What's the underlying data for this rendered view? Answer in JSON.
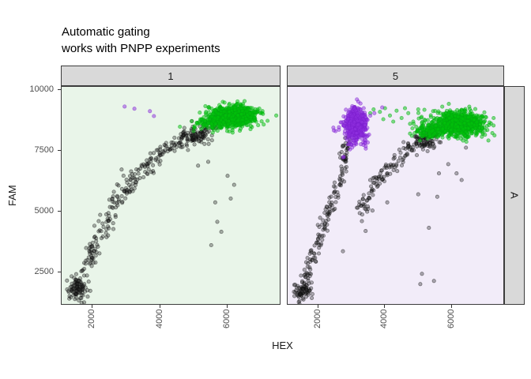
{
  "title": {
    "line1": "Automatic gating",
    "line2": "works with PNPP experiments"
  },
  "chart_data": {
    "type": "scatter",
    "title": "Automatic gating\nworks with PNPP experiments",
    "xlabel": "HEX",
    "ylabel": "FAM",
    "xlim": [
      1080,
      7600
    ],
    "ylim": [
      1136,
      10130
    ],
    "x_ticks": [
      2000,
      4000,
      6000
    ],
    "y_ticks": [
      10000,
      7500,
      5000,
      2500
    ],
    "grid": false,
    "legend": false,
    "facet_row_label": "A",
    "point_style": {
      "radius": 2.2,
      "stroke_width": 0.7,
      "classes": {
        "negative": {
          "fill": "#1c1c1c",
          "fill_opacity": 0.34,
          "stroke": "#0a0a0a",
          "stroke_opacity": 0.5
        },
        "positive": {
          "fill": "#00C30A",
          "fill_opacity": 0.5,
          "stroke": "#00A511",
          "stroke_opacity": 0.55
        },
        "other": {
          "fill": "#9030E0",
          "fill_opacity": 0.5,
          "stroke": "#7A1ECC",
          "stroke_opacity": 0.55
        }
      }
    },
    "panels": [
      {
        "facet_label": "1",
        "background": "#E9F5E9",
        "seed": 11,
        "groups": [
          {
            "name": "negative-rain-curve",
            "class": "negative",
            "kind": "curve",
            "n": 300,
            "jitter": [
              110,
              180
            ],
            "path": [
              [
                1400,
                1700
              ],
              [
                1700,
                2400
              ],
              [
                2000,
                3300
              ],
              [
                2300,
                4300
              ],
              [
                2600,
                5100
              ],
              [
                2900,
                5800
              ],
              [
                3200,
                6300
              ],
              [
                3500,
                6750
              ],
              [
                3800,
                7100
              ],
              [
                4100,
                7450
              ],
              [
                4400,
                7750
              ],
              [
                4700,
                7980
              ],
              [
                5000,
                8180
              ],
              [
                5300,
                8360
              ],
              [
                5600,
                8500
              ]
            ]
          },
          {
            "name": "negative-start-blob",
            "class": "negative",
            "kind": "cluster",
            "n": 70,
            "center": [
              1550,
              1850
            ],
            "sd": [
              150,
              230
            ]
          },
          {
            "name": "negative-under-positive",
            "class": "negative",
            "kind": "cluster",
            "n": 45,
            "center": [
              5050,
              8120
            ],
            "sd": [
              260,
              190
            ]
          },
          {
            "name": "negative-outliers",
            "class": "negative",
            "kind": "points",
            "pts": [
              [
                5430,
                7050
              ],
              [
                6005,
                6470
              ],
              [
                6100,
                5540
              ],
              [
                5640,
                5380
              ],
              [
                5700,
                4580
              ],
              [
                5820,
                4170
              ],
              [
                5520,
                3620
              ],
              [
                5130,
                6890
              ],
              [
                3740,
                6630
              ],
              [
                2860,
                6730
              ],
              [
                6200,
                6100
              ]
            ]
          },
          {
            "name": "positive-main",
            "class": "positive",
            "kind": "cluster",
            "n": 850,
            "center": [
              6200,
              8950
            ],
            "sd": [
              310,
              200
            ]
          },
          {
            "name": "positive-tail",
            "class": "positive",
            "kind": "cluster",
            "n": 130,
            "center": [
              5580,
              8680
            ],
            "sd": [
              260,
              170
            ]
          },
          {
            "name": "positive-halo",
            "class": "positive",
            "kind": "cluster",
            "n": 50,
            "center": [
              6200,
              8950
            ],
            "sd": [
              520,
              300
            ]
          },
          {
            "name": "positive-singles",
            "class": "positive",
            "kind": "points",
            "pts": [
              [
                4590,
                8490
              ],
              [
                4940,
                8720
              ],
              [
                5100,
                8650
              ]
            ]
          },
          {
            "name": "other-strays",
            "class": "other",
            "kind": "points",
            "pts": [
              [
                2950,
                9320
              ],
              [
                3240,
                9230
              ],
              [
                3700,
                9130
              ],
              [
                3820,
                8930
              ]
            ]
          }
        ]
      },
      {
        "facet_label": "5",
        "background": "#F2ECF9",
        "seed": 23,
        "groups": [
          {
            "name": "negative-rain-left",
            "class": "negative",
            "kind": "curve",
            "n": 165,
            "jitter": [
              75,
              170
            ],
            "path": [
              [
                1500,
                1600
              ],
              [
                1650,
                2250
              ],
              [
                1800,
                2900
              ],
              [
                1950,
                3550
              ],
              [
                2100,
                4150
              ],
              [
                2250,
                4750
              ],
              [
                2400,
                5350
              ],
              [
                2550,
                6000
              ],
              [
                2700,
                6700
              ],
              [
                2800,
                7350
              ],
              [
                2870,
                7950
              ]
            ]
          },
          {
            "name": "negative-start-blob",
            "class": "negative",
            "kind": "cluster",
            "n": 55,
            "center": [
              1520,
              1750
            ],
            "sd": [
              130,
              220
            ]
          },
          {
            "name": "negative-rain-right",
            "class": "negative",
            "kind": "curve",
            "n": 175,
            "jitter": [
              95,
              170
            ],
            "path": [
              [
                3300,
                5050
              ],
              [
                3650,
                5950
              ],
              [
                4000,
                6550
              ],
              [
                4350,
                7100
              ],
              [
                4700,
                7550
              ],
              [
                5050,
                7900
              ],
              [
                5350,
                8150
              ],
              [
                5600,
                8300
              ]
            ]
          },
          {
            "name": "negative-under-positive",
            "class": "negative",
            "kind": "cluster",
            "n": 40,
            "center": [
              5350,
              7850
            ],
            "sd": [
              180,
              220
            ]
          },
          {
            "name": "negative-outliers",
            "class": "negative",
            "kind": "points",
            "pts": [
              [
                5620,
                6570
              ],
              [
                6150,
                6570
              ],
              [
                6430,
                7630
              ],
              [
                5570,
                5610
              ],
              [
                5320,
                4330
              ],
              [
                5000,
                5710
              ],
              [
                4070,
                5380
              ],
              [
                5110,
                2440
              ],
              [
                5470,
                2150
              ],
              [
                5060,
                2020
              ],
              [
                2740,
                3370
              ],
              [
                6300,
                6300
              ],
              [
                5900,
                6950
              ],
              [
                3420,
                4200
              ]
            ]
          },
          {
            "name": "positive-main",
            "class": "positive",
            "kind": "cluster",
            "n": 900,
            "center": [
              6200,
              8600
            ],
            "sd": [
              380,
              240
            ]
          },
          {
            "name": "positive-sub",
            "class": "positive",
            "kind": "cluster",
            "n": 120,
            "center": [
              5300,
              8300
            ],
            "sd": [
              230,
              160
            ]
          },
          {
            "name": "positive-halo",
            "class": "positive",
            "kind": "cluster",
            "n": 40,
            "center": [
              6150,
              8650
            ],
            "sd": [
              600,
              320
            ]
          },
          {
            "name": "positive-trail",
            "class": "positive",
            "kind": "points",
            "pts": [
              [
                3660,
                9200
              ],
              [
                3850,
                9100
              ],
              [
                4000,
                9250
              ],
              [
                4150,
                8950
              ],
              [
                4350,
                9150
              ],
              [
                4500,
                8850
              ],
              [
                4700,
                9050
              ],
              [
                4850,
                8700
              ],
              [
                5000,
                9200
              ],
              [
                5100,
                8900
              ],
              [
                4250,
                8700
              ],
              [
                3950,
                8800
              ],
              [
                4600,
                9250
              ],
              [
                3560,
                9050
              ]
            ]
          },
          {
            "name": "other-main",
            "class": "other",
            "kind": "cluster",
            "n": 520,
            "center": [
              3120,
              8600
            ],
            "sd": [
              150,
              310
            ]
          },
          {
            "name": "other-halo",
            "class": "other",
            "kind": "cluster",
            "n": 70,
            "center": [
              3120,
              8550
            ],
            "sd": [
              280,
              480
            ]
          }
        ]
      }
    ]
  }
}
